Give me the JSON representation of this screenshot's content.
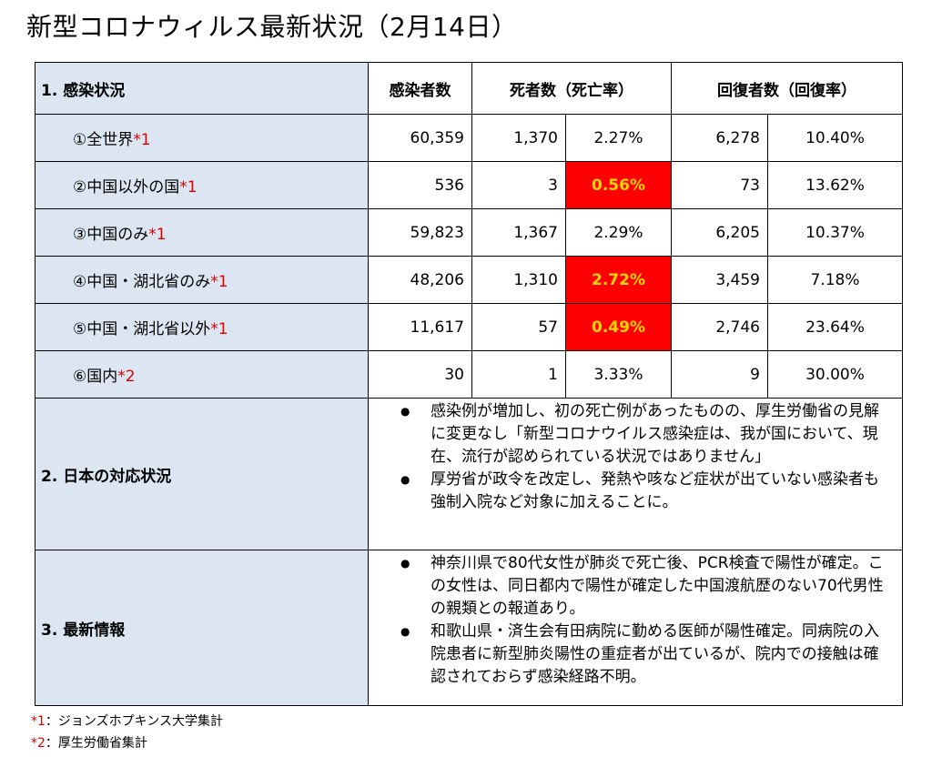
{
  "title": "新型コロナウィルス最新状況（2月14日）",
  "table": {
    "headers": {
      "section": "1. 感染状況",
      "infected": "感染者数",
      "deaths": "死者数（死亡率）",
      "recovered": "回復者数（回復率）"
    },
    "rows": [
      {
        "label": "①全世界",
        "note": "*1",
        "infected": "60,359",
        "deaths": "1,370",
        "death_rate": "2.27%",
        "recovered": "6,278",
        "recovery_rate": "10.40%"
      },
      {
        "label": "②中国以外の国",
        "note": "*1",
        "infected": "536",
        "deaths": "3",
        "death_rate": "0.56%",
        "recovered": "73",
        "recovery_rate": "13.62%"
      },
      {
        "label": "③中国のみ",
        "note": "*1",
        "infected": "59,823",
        "deaths": "1,367",
        "death_rate": "2.29%",
        "recovered": "6,205",
        "recovery_rate": "10.37%"
      },
      {
        "label": "④中国・湖北省のみ",
        "note": "*1",
        "infected": "48,206",
        "deaths": "1,310",
        "death_rate": "2.72%",
        "recovered": "3,459",
        "recovery_rate": "7.18%"
      },
      {
        "label": "⑤中国・湖北省以外",
        "note": "*1",
        "infected": "11,617",
        "deaths": "57",
        "death_rate": "0.49%",
        "recovered": "2,746",
        "recovery_rate": "23.64%"
      },
      {
        "label": "⑥国内",
        "note": "*2",
        "infected": "30",
        "deaths": "1",
        "death_rate": "3.33%",
        "recovered": "9",
        "recovery_rate": "30.00%"
      }
    ],
    "highlight_color": "#ff0000",
    "highlight_text_color": "#ffd800",
    "label_background": "#dce6f2"
  },
  "section2": {
    "label": "2. 日本の対応状況",
    "bullets": [
      "感染例が増加し、初の死亡例があったものの、厚生労働省の見解に変更なし「新型コロナウイルス感染症は、我が国において、現在、流行が認められている状況ではありません」",
      "厚労省が政令を改定し、発熱や咳など症状が出ていない感染者も強制入院など対象に加えることに。"
    ]
  },
  "section3": {
    "label": "3. 最新情報",
    "bullets": [
      "神奈川県で80代女性が肺炎で死亡後、PCR検査で陽性が確定。この女性は、同日都内で陽性が確定した中国渡航歴のない70代男性の親類との報道あり。",
      "和歌山県・済生会有田病院に勤める医師が陽性確定。同病院の入院患者に新型肺炎陽性の重症者が出ているが、院内での接触は確認されておらず感染経路不明。"
    ]
  },
  "footnotes": [
    {
      "mark": "*1",
      "text": "：ジョンズホプキンス大学集計"
    },
    {
      "mark": "*2",
      "text": "：厚生労働省集計"
    }
  ]
}
